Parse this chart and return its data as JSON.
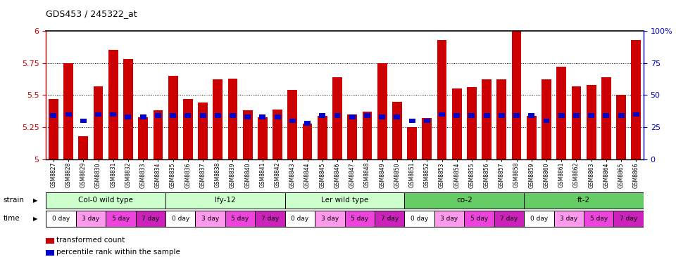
{
  "title": "GDS453 / 245322_at",
  "samples": [
    "GSM8827",
    "GSM8828",
    "GSM8829",
    "GSM8830",
    "GSM8831",
    "GSM8832",
    "GSM8833",
    "GSM8834",
    "GSM8835",
    "GSM8836",
    "GSM8837",
    "GSM8838",
    "GSM8839",
    "GSM8840",
    "GSM8841",
    "GSM8842",
    "GSM8843",
    "GSM8844",
    "GSM8845",
    "GSM8846",
    "GSM8847",
    "GSM8848",
    "GSM8849",
    "GSM8850",
    "GSM8851",
    "GSM8852",
    "GSM8853",
    "GSM8854",
    "GSM8855",
    "GSM8856",
    "GSM8857",
    "GSM8858",
    "GSM8859",
    "GSM8860",
    "GSM8861",
    "GSM8862",
    "GSM8863",
    "GSM8864",
    "GSM8865",
    "GSM8866"
  ],
  "bar_values": [
    5.47,
    5.75,
    5.18,
    5.57,
    5.85,
    5.78,
    5.33,
    5.38,
    5.65,
    5.47,
    5.44,
    5.62,
    5.63,
    5.38,
    5.33,
    5.39,
    5.54,
    5.28,
    5.34,
    5.64,
    5.35,
    5.37,
    5.75,
    5.45,
    5.25,
    5.32,
    5.93,
    5.55,
    5.56,
    5.62,
    5.62,
    6.0,
    5.34,
    5.62,
    5.72,
    5.57,
    5.58,
    5.64,
    5.5,
    5.93
  ],
  "percentile_values": [
    5.34,
    5.35,
    5.3,
    5.35,
    5.35,
    5.33,
    5.33,
    5.34,
    5.34,
    5.34,
    5.34,
    5.34,
    5.34,
    5.33,
    5.33,
    5.33,
    5.3,
    5.28,
    5.34,
    5.34,
    5.33,
    5.34,
    5.33,
    5.33,
    5.3,
    5.3,
    5.35,
    5.34,
    5.34,
    5.34,
    5.34,
    5.34,
    5.34,
    5.3,
    5.34,
    5.34,
    5.34,
    5.34,
    5.34,
    5.35
  ],
  "ymin": 5.0,
  "ymax": 6.0,
  "yticks": [
    5.0,
    5.25,
    5.5,
    5.75,
    6.0
  ],
  "ytick_labels": [
    "5",
    "5.25",
    "5.5",
    "5.75",
    "6"
  ],
  "bar_color": "#CC0000",
  "percentile_color": "#0000CC",
  "background_color": "#ffffff",
  "strains": [
    {
      "label": "Col-0 wild type",
      "start": 0,
      "end": 8,
      "color": "#ccffcc"
    },
    {
      "label": "lfy-12",
      "start": 8,
      "end": 16,
      "color": "#ccffcc"
    },
    {
      "label": "Ler wild type",
      "start": 16,
      "end": 24,
      "color": "#ccffcc"
    },
    {
      "label": "co-2",
      "start": 24,
      "end": 32,
      "color": "#66cc66"
    },
    {
      "label": "ft-2",
      "start": 32,
      "end": 40,
      "color": "#66cc66"
    }
  ],
  "time_colors": [
    "#ffffff",
    "#ff99ee",
    "#ee44dd",
    "#cc22bb"
  ],
  "time_labels": [
    "0 day",
    "3 day",
    "5 day",
    "7 day"
  ],
  "right_yaxis_ticks": [
    0,
    25,
    50,
    75,
    100
  ],
  "right_yaxis_labels": [
    "0",
    "25",
    "50",
    "75",
    "100%"
  ],
  "legend_items": [
    {
      "color": "#CC0000",
      "label": "transformed count"
    },
    {
      "color": "#0000CC",
      "label": "percentile rank within the sample"
    }
  ]
}
